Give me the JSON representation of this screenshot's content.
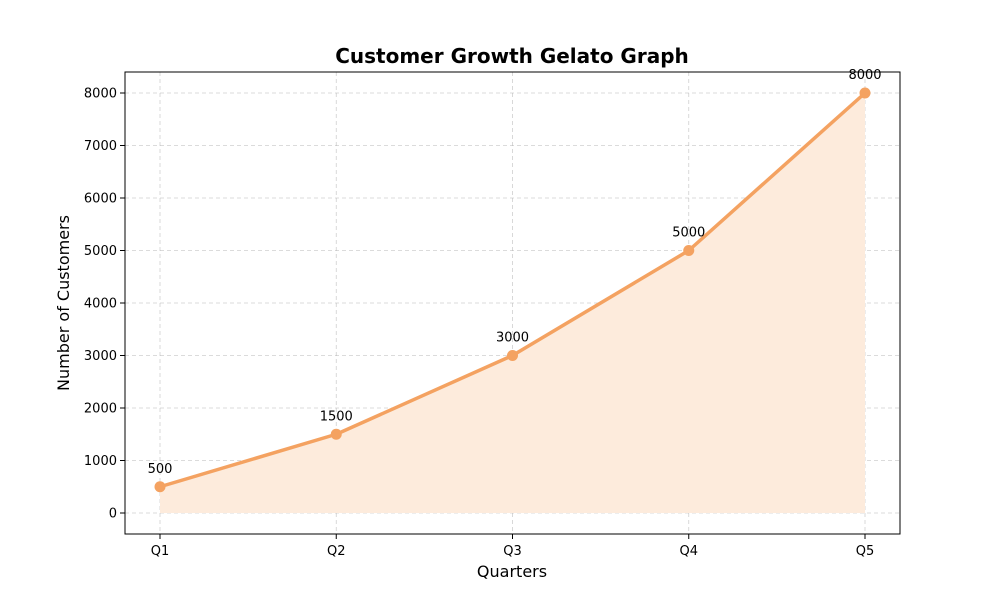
{
  "chart_data": {
    "type": "line",
    "title": "Customer Growth Gelato Graph",
    "xlabel": "Quarters",
    "ylabel": "Number of Customers",
    "categories": [
      "Q1",
      "Q2",
      "Q3",
      "Q4",
      "Q5"
    ],
    "series": [
      {
        "values": [
          500,
          1500,
          3000,
          5000,
          8000
        ]
      }
    ],
    "data_labels": [
      "500",
      "1500",
      "3000",
      "5000",
      "8000"
    ],
    "ylim": [
      -400,
      8400
    ],
    "yticks": [
      0,
      1000,
      2000,
      3000,
      4000,
      5000,
      6000,
      7000,
      8000
    ],
    "grid": true,
    "area_fill": true,
    "colors": {
      "line": "#f4a261",
      "fill": "#fdebdc"
    }
  }
}
